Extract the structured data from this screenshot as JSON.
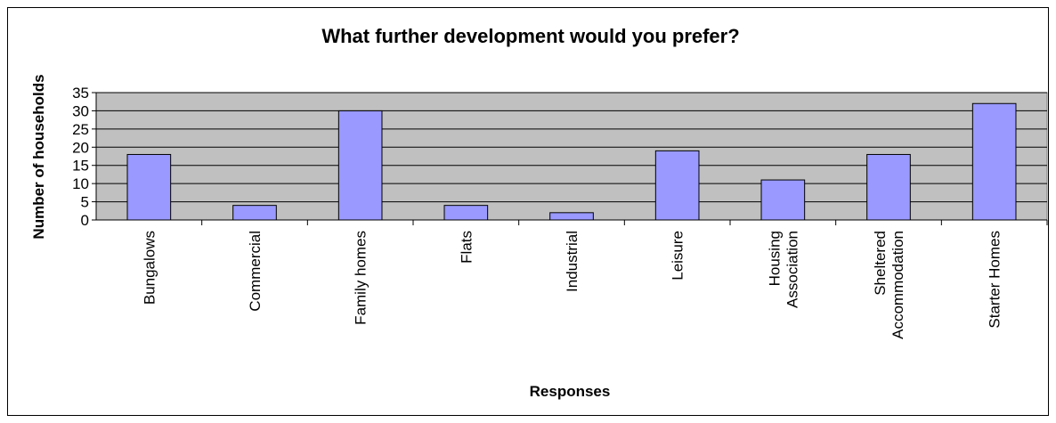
{
  "chart_data": {
    "type": "bar",
    "title": "What further development would you prefer?",
    "xlabel": "Responses",
    "ylabel": "Number of households",
    "categories": [
      [
        "Bungalows"
      ],
      [
        "Commercial"
      ],
      [
        "Family homes"
      ],
      [
        "Flats"
      ],
      [
        "Industrial"
      ],
      [
        "Leisure"
      ],
      [
        "Housing",
        "Association"
      ],
      [
        "Sheltered",
        "Accommodation"
      ],
      [
        "Starter Homes"
      ]
    ],
    "values": [
      18,
      4,
      30,
      4,
      2,
      19,
      11,
      18,
      32
    ],
    "ylim": [
      0,
      35
    ],
    "yticks": [
      0,
      5,
      10,
      15,
      20,
      25,
      30,
      35
    ],
    "grid": true,
    "legend": "none",
    "colors": {
      "plot_background": "#c0c0c0",
      "bar_fill": "#9999ff",
      "bar_stroke": "#000000",
      "gridline": "#000000"
    }
  }
}
